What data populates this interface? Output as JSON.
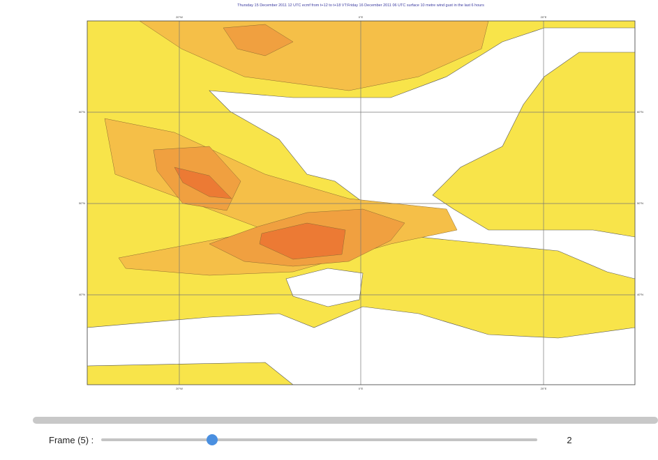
{
  "map": {
    "title": "Thursday 15 December 2011 12 UTC ecmf  from t+12 to t+18 VT:Friday 16 December 2011 06 UTC surface  10 metre wind gust in the last 6 hours",
    "lon_labels": [
      "20°W",
      "0°E",
      "20°E"
    ],
    "lat_labels": [
      "60°N",
      "50°N",
      "40°N"
    ]
  },
  "controls": {
    "frame_label": "Frame (5) :",
    "frame_value": "2"
  }
}
